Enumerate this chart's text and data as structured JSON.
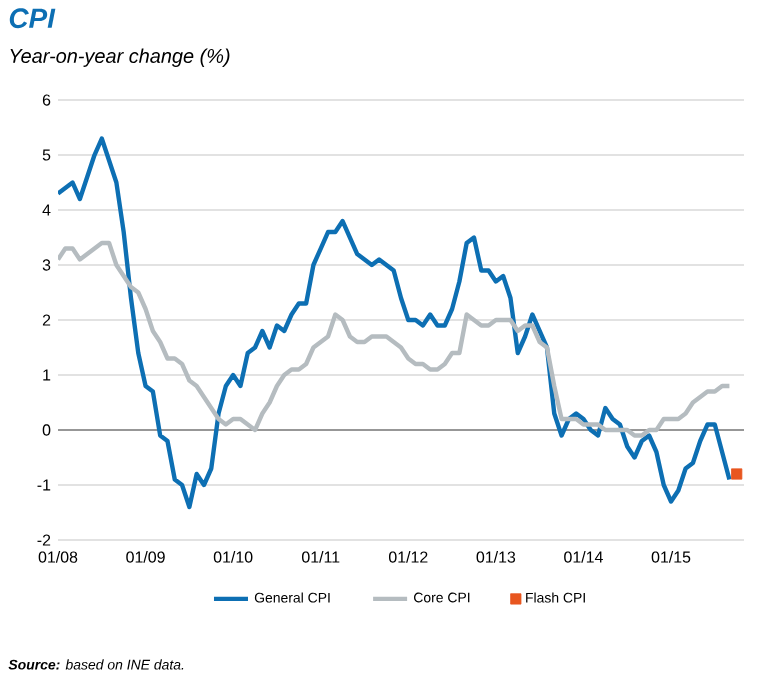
{
  "chart_data": {
    "type": "line",
    "title": "CPI",
    "subtitle": "Year-on-year change (%)",
    "xlim": [
      "2008-01",
      "2015-11"
    ],
    "ylim": [
      -2,
      6
    ],
    "xticks": [
      {
        "value": "2008-01",
        "label": "01/08"
      },
      {
        "value": "2009-01",
        "label": "01/09"
      },
      {
        "value": "2010-01",
        "label": "01/10"
      },
      {
        "value": "2011-01",
        "label": "01/11"
      },
      {
        "value": "2012-01",
        "label": "01/12"
      },
      {
        "value": "2013-01",
        "label": "01/13"
      },
      {
        "value": "2014-01",
        "label": "01/14"
      },
      {
        "value": "2015-01",
        "label": "01/15"
      }
    ],
    "yticks": [
      -2,
      -1,
      0,
      1,
      2,
      3,
      4,
      5,
      6
    ],
    "grid": "y",
    "legend": "bottom",
    "marker": "none",
    "annotations": [
      "**Source:** based on INE data."
    ],
    "series": [
      {
        "name": "General CPI",
        "color": "#0d6fb3",
        "x": [
          "2008-01",
          "2008-02",
          "2008-03",
          "2008-04",
          "2008-05",
          "2008-06",
          "2008-07",
          "2008-08",
          "2008-09",
          "2008-10",
          "2008-11",
          "2008-12",
          "2009-01",
          "2009-02",
          "2009-03",
          "2009-04",
          "2009-05",
          "2009-06",
          "2009-07",
          "2009-08",
          "2009-09",
          "2009-10",
          "2009-11",
          "2009-12",
          "2010-01",
          "2010-02",
          "2010-03",
          "2010-04",
          "2010-05",
          "2010-06",
          "2010-07",
          "2010-08",
          "2010-09",
          "2010-10",
          "2010-11",
          "2010-12",
          "2011-01",
          "2011-02",
          "2011-03",
          "2011-04",
          "2011-05",
          "2011-06",
          "2011-07",
          "2011-08",
          "2011-09",
          "2011-10",
          "2011-11",
          "2011-12",
          "2012-01",
          "2012-02",
          "2012-03",
          "2012-04",
          "2012-05",
          "2012-06",
          "2012-07",
          "2012-08",
          "2012-09",
          "2012-10",
          "2012-11",
          "2012-12",
          "2013-01",
          "2013-02",
          "2013-03",
          "2013-04",
          "2013-05",
          "2013-06",
          "2013-07",
          "2013-08",
          "2013-09",
          "2013-10",
          "2013-11",
          "2013-12",
          "2014-01",
          "2014-02",
          "2014-03",
          "2014-04",
          "2014-05",
          "2014-06",
          "2014-07",
          "2014-08",
          "2014-09",
          "2014-10",
          "2014-11",
          "2014-12",
          "2015-01",
          "2015-02",
          "2015-03",
          "2015-04",
          "2015-05",
          "2015-06",
          "2015-07",
          "2015-08",
          "2015-09"
        ],
        "values": [
          4.3,
          4.4,
          4.5,
          4.2,
          4.6,
          5.0,
          5.3,
          4.9,
          4.5,
          3.6,
          2.4,
          1.4,
          0.8,
          0.7,
          -0.1,
          -0.2,
          -0.9,
          -1.0,
          -1.4,
          -0.8,
          -1.0,
          -0.7,
          0.3,
          0.8,
          1.0,
          0.8,
          1.4,
          1.5,
          1.8,
          1.5,
          1.9,
          1.8,
          2.1,
          2.3,
          2.3,
          3.0,
          3.3,
          3.6,
          3.6,
          3.8,
          3.5,
          3.2,
          3.1,
          3.0,
          3.1,
          3.0,
          2.9,
          2.4,
          2.0,
          2.0,
          1.9,
          2.1,
          1.9,
          1.9,
          2.2,
          2.7,
          3.4,
          3.5,
          2.9,
          2.9,
          2.7,
          2.8,
          2.4,
          1.4,
          1.7,
          2.1,
          1.8,
          1.5,
          0.3,
          -0.1,
          0.2,
          0.3,
          0.2,
          0.0,
          -0.1,
          0.4,
          0.2,
          0.1,
          -0.3,
          -0.5,
          -0.2,
          -0.1,
          -0.4,
          -1.0,
          -1.3,
          -1.1,
          -0.7,
          -0.6,
          -0.2,
          0.1,
          0.1,
          -0.4,
          -0.9
        ]
      },
      {
        "name": "Core CPI",
        "color": "#b5bcc0",
        "x": [
          "2008-01",
          "2008-02",
          "2008-03",
          "2008-04",
          "2008-05",
          "2008-06",
          "2008-07",
          "2008-08",
          "2008-09",
          "2008-10",
          "2008-11",
          "2008-12",
          "2009-01",
          "2009-02",
          "2009-03",
          "2009-04",
          "2009-05",
          "2009-06",
          "2009-07",
          "2009-08",
          "2009-09",
          "2009-10",
          "2009-11",
          "2009-12",
          "2010-01",
          "2010-02",
          "2010-03",
          "2010-04",
          "2010-05",
          "2010-06",
          "2010-07",
          "2010-08",
          "2010-09",
          "2010-10",
          "2010-11",
          "2010-12",
          "2011-01",
          "2011-02",
          "2011-03",
          "2011-04",
          "2011-05",
          "2011-06",
          "2011-07",
          "2011-08",
          "2011-09",
          "2011-10",
          "2011-11",
          "2011-12",
          "2012-01",
          "2012-02",
          "2012-03",
          "2012-04",
          "2012-05",
          "2012-06",
          "2012-07",
          "2012-08",
          "2012-09",
          "2012-10",
          "2012-11",
          "2012-12",
          "2013-01",
          "2013-02",
          "2013-03",
          "2013-04",
          "2013-05",
          "2013-06",
          "2013-07",
          "2013-08",
          "2013-09",
          "2013-10",
          "2013-11",
          "2013-12",
          "2014-01",
          "2014-02",
          "2014-03",
          "2014-04",
          "2014-05",
          "2014-06",
          "2014-07",
          "2014-08",
          "2014-09",
          "2014-10",
          "2014-11",
          "2014-12",
          "2015-01",
          "2015-02",
          "2015-03",
          "2015-04",
          "2015-05",
          "2015-06",
          "2015-07",
          "2015-08",
          "2015-09"
        ],
        "values": [
          3.1,
          3.3,
          3.3,
          3.1,
          3.2,
          3.3,
          3.4,
          3.4,
          3.0,
          2.8,
          2.6,
          2.5,
          2.2,
          1.8,
          1.6,
          1.3,
          1.3,
          1.2,
          0.9,
          0.8,
          0.6,
          0.4,
          0.2,
          0.1,
          0.2,
          0.2,
          0.1,
          0.0,
          0.3,
          0.5,
          0.8,
          1.0,
          1.1,
          1.1,
          1.2,
          1.5,
          1.6,
          1.7,
          2.1,
          2.0,
          1.7,
          1.6,
          1.6,
          1.7,
          1.7,
          1.7,
          1.6,
          1.5,
          1.3,
          1.2,
          1.2,
          1.1,
          1.1,
          1.2,
          1.4,
          1.4,
          2.1,
          2.0,
          1.9,
          1.9,
          2.0,
          2.0,
          2.0,
          1.8,
          1.9,
          1.9,
          1.6,
          1.5,
          0.8,
          0.2,
          0.2,
          0.2,
          0.1,
          0.1,
          0.1,
          0.0,
          0.0,
          0.0,
          0.0,
          -0.1,
          -0.1,
          0.0,
          0.0,
          0.2,
          0.2,
          0.2,
          0.3,
          0.5,
          0.6,
          0.7,
          0.7,
          0.8,
          0.8
        ]
      },
      {
        "name": "Flash CPI",
        "color": "#e8561f",
        "type": "scatter",
        "marker": "square",
        "x": [
          "2015-10"
        ],
        "values": [
          -0.8
        ]
      }
    ]
  }
}
